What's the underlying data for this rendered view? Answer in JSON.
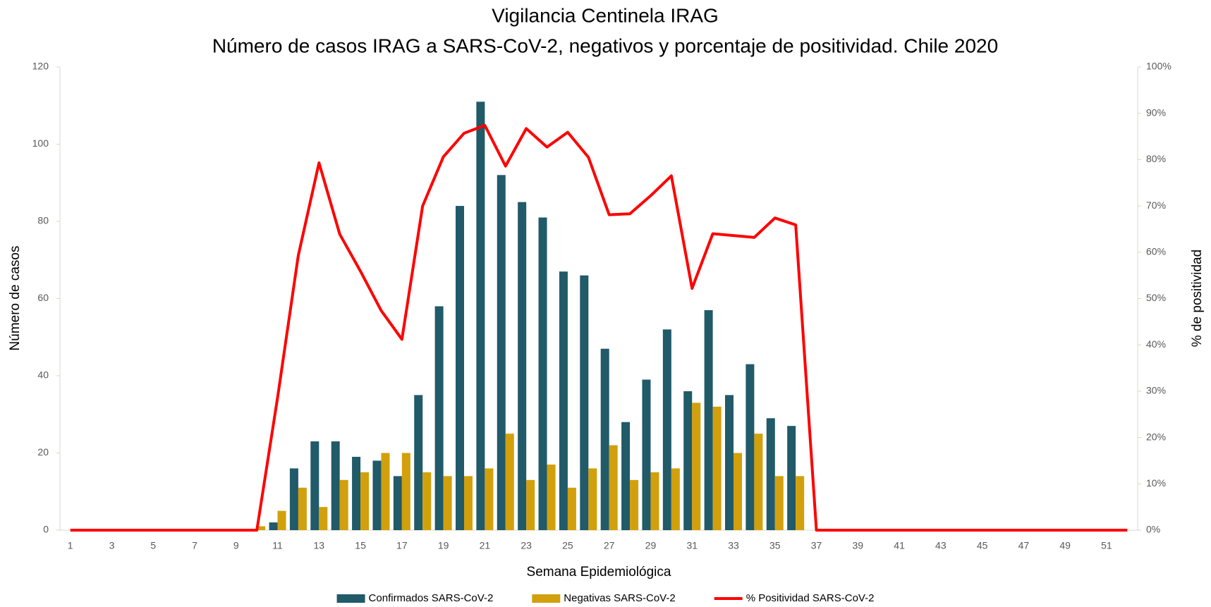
{
  "chart_data": {
    "type": "bar_line",
    "title": "Vigilancia Centinela IRAG",
    "subtitle": "Número de casos IRAG a SARS-CoV-2, negativos y porcentaje de positividad. Chile 2020",
    "x_label": "Semana Epidemiológica",
    "y_label": "Número de casos",
    "y2_label": "% de positividad",
    "categories": [
      1,
      null,
      3,
      null,
      5,
      null,
      7,
      null,
      9,
      null,
      11,
      null,
      13,
      null,
      15,
      null,
      17,
      null,
      19,
      null,
      21,
      null,
      23,
      null,
      25,
      null,
      27,
      null,
      29,
      null,
      31,
      null,
      33,
      null,
      35,
      null,
      37,
      null,
      39,
      null,
      41,
      null,
      43,
      null,
      45,
      null,
      47,
      null,
      49,
      null,
      51,
      null
    ],
    "series": [
      {
        "name": "Confirmados SARS-CoV-2",
        "type": "bar",
        "color": "#215a68",
        "values": [
          0,
          0,
          0,
          0,
          0,
          0,
          0,
          0,
          0,
          0,
          2,
          16,
          23,
          23,
          19,
          18,
          14,
          35,
          58,
          84,
          111,
          92,
          85,
          81,
          67,
          66,
          47,
          28,
          39,
          52,
          36,
          57,
          35,
          43,
          29,
          27,
          0,
          0,
          0,
          0,
          0,
          0,
          0,
          0,
          0,
          0,
          0,
          0,
          0,
          0,
          0,
          0
        ]
      },
      {
        "name": "Negativas SARS-CoV-2",
        "type": "bar",
        "color": "#d1a00c",
        "values": [
          0,
          0,
          0,
          0,
          0,
          0,
          0,
          0,
          0,
          1,
          5,
          11,
          6,
          13,
          15,
          20,
          20,
          15,
          14,
          14,
          16,
          25,
          13,
          17,
          11,
          16,
          22,
          13,
          15,
          16,
          33,
          32,
          20,
          25,
          14,
          14,
          0,
          0,
          0,
          0,
          0,
          0,
          0,
          0,
          0,
          0,
          0,
          0,
          0,
          0,
          0,
          0
        ]
      },
      {
        "name": "% Positividad SARS-CoV-2",
        "type": "line",
        "axis": "y2",
        "color": "#ff0000",
        "values": [
          0,
          0,
          0,
          0,
          0,
          0,
          0,
          0,
          0,
          0,
          28.6,
          59.3,
          79.3,
          63.9,
          55.9,
          47.4,
          41.2,
          70,
          80.6,
          85.7,
          87.4,
          78.6,
          86.7,
          82.7,
          85.9,
          80.5,
          68.1,
          68.3,
          72.2,
          76.5,
          52.2,
          64,
          63.6,
          63.2,
          67.4,
          65.9,
          0,
          0,
          0,
          0,
          0,
          0,
          0,
          0,
          0,
          0,
          0,
          0,
          0,
          0,
          0,
          0
        ]
      }
    ],
    "ylim": [
      0,
      120
    ],
    "yticks": [
      0,
      20,
      40,
      60,
      80,
      100,
      120
    ],
    "y2lim": [
      0,
      100
    ],
    "y2ticks": [
      {
        "value": 0,
        "label": "0%"
      },
      {
        "value": 10,
        "label": "10%"
      },
      {
        "value": 20,
        "label": "20%"
      },
      {
        "value": 30,
        "label": "30%"
      },
      {
        "value": 40,
        "label": "40%"
      },
      {
        "value": 50,
        "label": "50%"
      },
      {
        "value": 60,
        "label": "60%"
      },
      {
        "value": 70,
        "label": "70%"
      },
      {
        "value": 80,
        "label": "80%"
      },
      {
        "value": 90,
        "label": "90%"
      },
      {
        "value": 100,
        "label": "100%"
      }
    ],
    "grid": false,
    "legend": "bottom"
  }
}
